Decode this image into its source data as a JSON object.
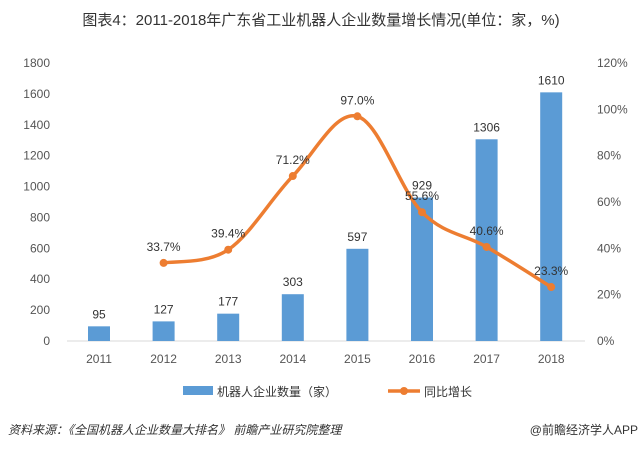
{
  "title": "图表4：2011-2018年广东省工业机器人企业数量增长情况(单位：家，%)",
  "chart_data": {
    "type": "bar+line",
    "categories": [
      "2011",
      "2012",
      "2013",
      "2014",
      "2015",
      "2016",
      "2017",
      "2018"
    ],
    "series": [
      {
        "name": "机器人企业数量（家）",
        "type": "bar",
        "axis": "left",
        "color": "#5b9bd5",
        "values": [
          95,
          127,
          177,
          303,
          597,
          929,
          1306,
          1610
        ],
        "labels": [
          "95",
          "127",
          "177",
          "303",
          "597",
          "929",
          "1306",
          "1610"
        ]
      },
      {
        "name": "同比增长",
        "type": "line",
        "axis": "right",
        "color": "#ed7d31",
        "values": [
          null,
          33.7,
          39.4,
          71.2,
          97.0,
          55.6,
          40.6,
          23.3
        ],
        "labels": [
          "",
          "33.7%",
          "39.4%",
          "71.2%",
          "97.0%",
          "55.6%",
          "40.6%",
          "23.3%"
        ]
      }
    ],
    "left_axis": {
      "range": [
        0,
        1800
      ],
      "ticks": [
        "0",
        "200",
        "400",
        "600",
        "800",
        "1000",
        "1200",
        "1400",
        "1600",
        "1800"
      ]
    },
    "right_axis": {
      "range": [
        0,
        120
      ],
      "ticks": [
        "0%",
        "20%",
        "40%",
        "60%",
        "80%",
        "100%",
        "120%"
      ]
    },
    "legend_placement": "bottom",
    "grid": false
  },
  "footer": {
    "source": "资料来源：《全国机器人企业数量大排名》 前瞻产业研究院整理",
    "credit": "@前瞻经济学人APP"
  }
}
